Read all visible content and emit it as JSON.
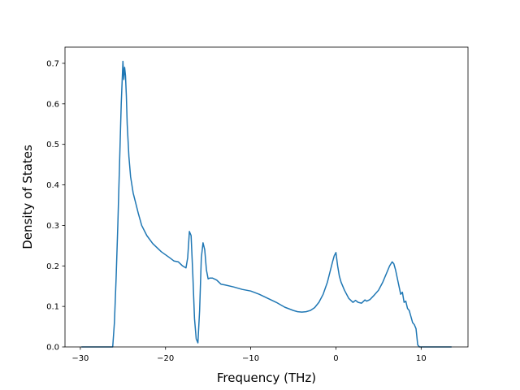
{
  "chart_data": {
    "type": "line",
    "title": "",
    "xlabel": "Frequency (THz)",
    "ylabel": "Density of States",
    "xlim": [
      -31.8,
      15.5
    ],
    "ylim": [
      0.0,
      0.74
    ],
    "xticks": [
      -30,
      -20,
      -10,
      0,
      10
    ],
    "xtick_labels": [
      "−30",
      "−20",
      "−10",
      "0",
      "10"
    ],
    "yticks": [
      0.0,
      0.1,
      0.2,
      0.3,
      0.4,
      0.5,
      0.6,
      0.7
    ],
    "ytick_labels": [
      "0.0",
      "0.1",
      "0.2",
      "0.3",
      "0.4",
      "0.5",
      "0.6",
      "0.7"
    ],
    "grid": false,
    "legend": "none",
    "series": [
      {
        "color": "#1f77b4",
        "x": [
          -29.8,
          -28.0,
          -26.2,
          -26.0,
          -25.8,
          -25.6,
          -25.4,
          -25.2,
          -25.0,
          -24.9,
          -24.8,
          -24.7,
          -24.6,
          -24.5,
          -24.3,
          -24.1,
          -23.8,
          -23.5,
          -23.2,
          -22.8,
          -22.2,
          -21.5,
          -20.5,
          -19.5,
          -19.0,
          -18.5,
          -18.0,
          -17.6,
          -17.4,
          -17.2,
          -17.0,
          -16.8,
          -16.6,
          -16.4,
          -16.2,
          -16.0,
          -15.8,
          -15.6,
          -15.4,
          -15.2,
          -15.0,
          -14.8,
          -14.5,
          -14.0,
          -13.5,
          -13.0,
          -12.0,
          -11.0,
          -10.0,
          -9.0,
          -8.0,
          -7.0,
          -6.0,
          -5.0,
          -4.5,
          -4.0,
          -3.5,
          -3.0,
          -2.5,
          -2.0,
          -1.5,
          -1.0,
          -0.7,
          -0.4,
          -0.2,
          0.0,
          0.2,
          0.4,
          0.6,
          1.0,
          1.5,
          2.0,
          2.3,
          2.6,
          3.0,
          3.4,
          3.6,
          4.0,
          4.5,
          5.0,
          5.5,
          6.0,
          6.3,
          6.6,
          6.8,
          7.0,
          7.3,
          7.6,
          7.8,
          8.0,
          8.2,
          8.4,
          8.6,
          8.8,
          9.0,
          9.2,
          9.4,
          9.6,
          9.8,
          10.0,
          10.5,
          11.0,
          13.5
        ],
        "y": [
          0.0,
          0.0,
          0.0,
          0.06,
          0.17,
          0.3,
          0.45,
          0.6,
          0.705,
          0.66,
          0.69,
          0.67,
          0.62,
          0.55,
          0.47,
          0.42,
          0.38,
          0.355,
          0.33,
          0.3,
          0.275,
          0.255,
          0.235,
          0.22,
          0.212,
          0.21,
          0.2,
          0.195,
          0.22,
          0.285,
          0.275,
          0.18,
          0.07,
          0.02,
          0.01,
          0.09,
          0.22,
          0.257,
          0.24,
          0.19,
          0.168,
          0.17,
          0.17,
          0.165,
          0.155,
          0.153,
          0.148,
          0.142,
          0.138,
          0.13,
          0.12,
          0.11,
          0.098,
          0.09,
          0.087,
          0.086,
          0.087,
          0.09,
          0.097,
          0.11,
          0.13,
          0.16,
          0.185,
          0.21,
          0.225,
          0.233,
          0.2,
          0.175,
          0.16,
          0.14,
          0.12,
          0.11,
          0.115,
          0.11,
          0.108,
          0.116,
          0.113,
          0.117,
          0.128,
          0.14,
          0.16,
          0.185,
          0.2,
          0.21,
          0.205,
          0.19,
          0.16,
          0.13,
          0.135,
          0.11,
          0.113,
          0.095,
          0.09,
          0.075,
          0.06,
          0.055,
          0.045,
          0.005,
          0.0,
          0.0,
          0.0,
          0.0,
          0.0
        ]
      }
    ]
  }
}
